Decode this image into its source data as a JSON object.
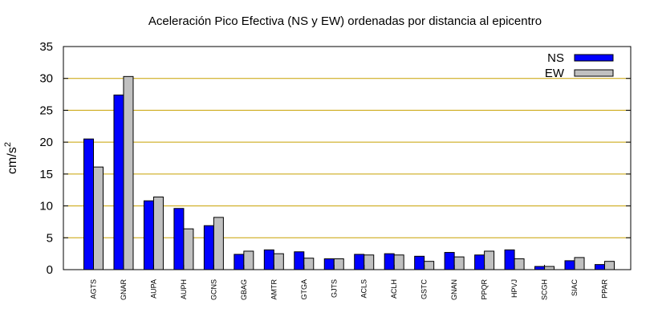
{
  "chart_data": {
    "type": "bar",
    "title": "Aceleración Pico Efectiva (NS y EW) ordenadas por distancia al epicentro",
    "xlabel": "",
    "ylabel": "cm/s",
    "ylabel_superscript": "2",
    "ylim": [
      0,
      35
    ],
    "yticks": [
      "0",
      "5",
      "10",
      "15",
      "20",
      "25",
      "30",
      "35"
    ],
    "grid": "horizontal",
    "legend_position": "top-right",
    "categories": [
      "AGTS",
      "GNAR",
      "AUPA",
      "AUPH",
      "GCNS",
      "GBAG",
      "AMTR",
      "GTGA",
      "GJTS",
      "ACLS",
      "ACLH",
      "GSTC",
      "GNAN",
      "PPQR",
      "HPVJ",
      "SCGH",
      "SIAC",
      "PPAR"
    ],
    "series": [
      {
        "name": "NS",
        "color": "#0000ff",
        "values": [
          20.5,
          27.4,
          10.8,
          9.6,
          6.9,
          2.4,
          3.1,
          2.8,
          1.7,
          2.4,
          2.5,
          2.1,
          2.7,
          2.3,
          3.1,
          0.5,
          1.4,
          0.8
        ]
      },
      {
        "name": "EW",
        "color": "#c0c0c0",
        "values": [
          16.1,
          30.3,
          11.4,
          6.4,
          8.2,
          2.9,
          2.5,
          1.8,
          1.7,
          2.3,
          2.3,
          1.3,
          2.0,
          2.9,
          1.7,
          0.5,
          1.9,
          1.3
        ]
      }
    ],
    "colors": {
      "grid": "#c8a000",
      "axis": "#000000"
    }
  }
}
